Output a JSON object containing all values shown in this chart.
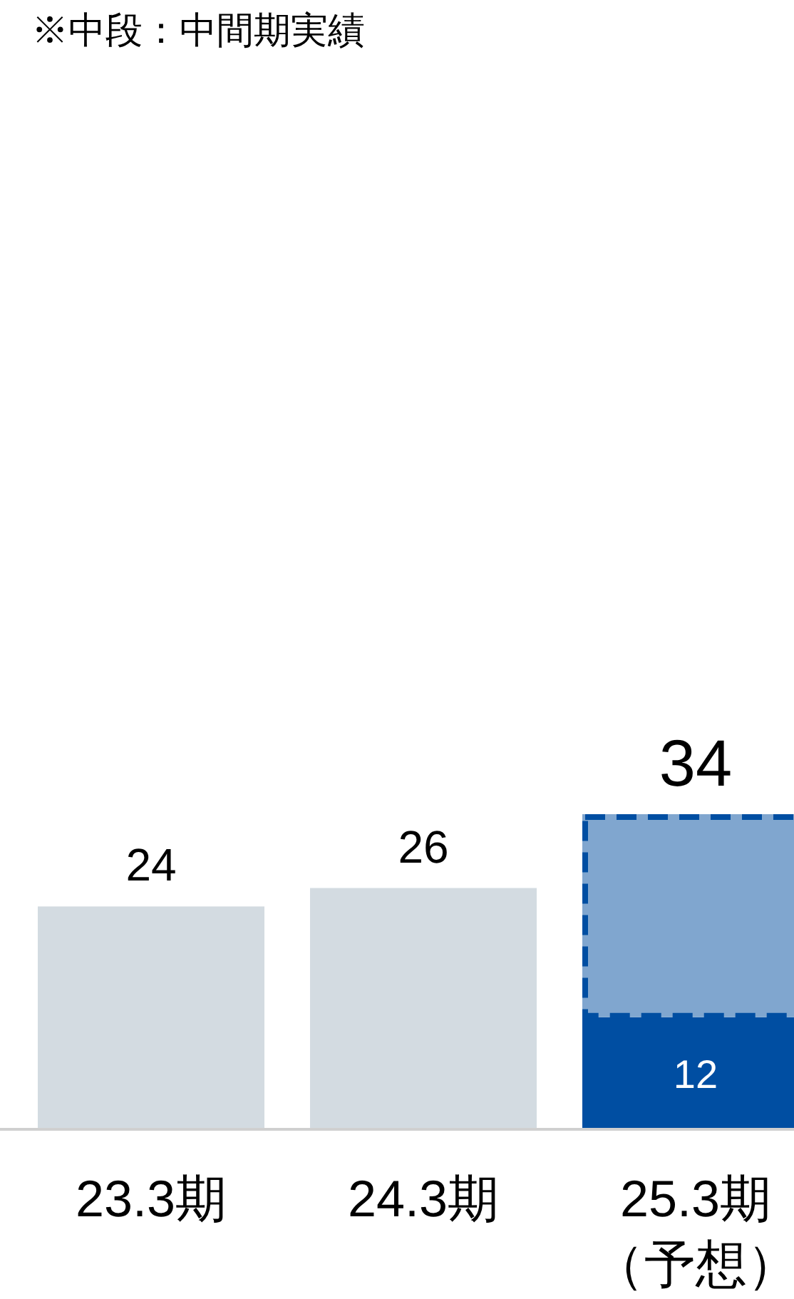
{
  "chart_data": {
    "type": "bar",
    "stacked": true,
    "categories": [
      "23.3期",
      "24.3期",
      "25.3期（予想）"
    ],
    "series": [
      {
        "colors": [
          "#d3dbe1",
          "#d3dbe1",
          "#004ea2"
        ],
        "values": [
          24,
          26,
          12
        ],
        "value_labels": [
          "24",
          "26",
          "12"
        ]
      },
      {
        "color": "#80a6cf",
        "values": [
          null,
          null,
          22
        ],
        "line_style": "dashed"
      }
    ],
    "totals": [
      null,
      null,
      "34"
    ],
    "annotations": [
      "※中段：中間期実績"
    ]
  }
}
